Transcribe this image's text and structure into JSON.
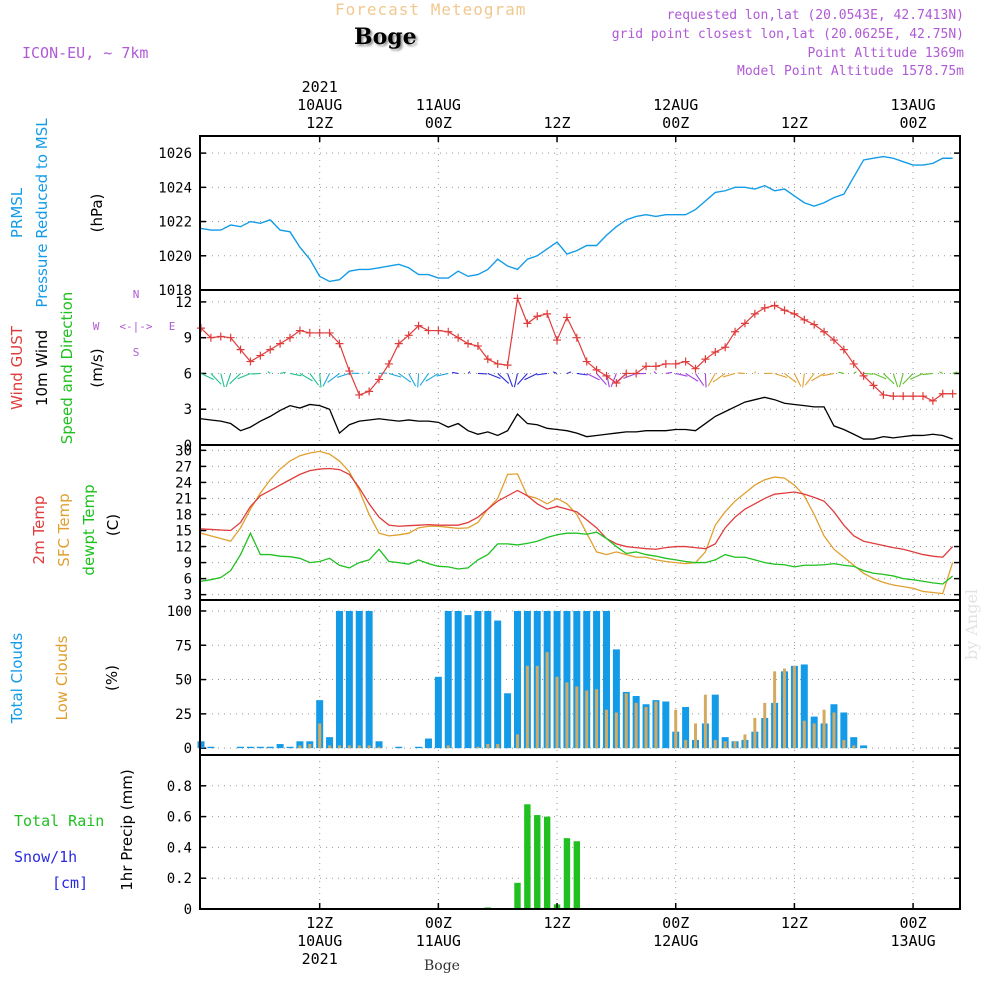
{
  "header": {
    "top_title": "Forecast Meteogram",
    "location": "Boge",
    "model": "ICON-EU, ~ 7km",
    "requested": "requested lon,lat (20.0543E, 42.7413N)",
    "grid_point": "grid point closest lon,lat (20.0625E, 42.75N)",
    "point_altitude": "Point Altitude 1369m",
    "model_altitude": "Model Point Altitude 1578.75m"
  },
  "footer": {
    "location": "Boge",
    "watermark": "by Angel"
  },
  "colors": {
    "blue": "#139be8",
    "red": "#e03c3c",
    "orange": "#e0a030",
    "green": "#20c020",
    "purple": "#b05ad6",
    "black": "#000000",
    "navy": "#2a2ae0"
  },
  "chart_data": [
    {
      "type": "line",
      "title": "PRMSL Pressure Reduced to MSL",
      "ylabels": [
        "PRMSL",
        "Pressure Reduced to MSL",
        "(hPa)"
      ],
      "ylim": [
        1018,
        1027
      ],
      "yticks": [
        1018,
        1020,
        1022,
        1024,
        1026
      ],
      "series": [
        {
          "name": "PRMSL",
          "color": "#139be8",
          "values": [
            1021.6,
            1021.5,
            1021.5,
            1021.8,
            1021.7,
            1022.0,
            1021.9,
            1022.1,
            1021.5,
            1021.4,
            1020.5,
            1019.8,
            1018.8,
            1018.5,
            1018.6,
            1019.1,
            1019.2,
            1019.2,
            1019.3,
            1019.4,
            1019.5,
            1019.3,
            1018.9,
            1018.9,
            1018.7,
            1018.7,
            1019.1,
            1018.8,
            1018.9,
            1019.2,
            1019.8,
            1019.4,
            1019.2,
            1019.8,
            1020.0,
            1020.4,
            1020.8,
            1020.1,
            1020.3,
            1020.6,
            1020.6,
            1021.2,
            1021.7,
            1022.1,
            1022.3,
            1022.4,
            1022.3,
            1022.4,
            1022.4,
            1022.4,
            1022.7,
            1023.2,
            1023.7,
            1023.8,
            1024.0,
            1024.0,
            1023.9,
            1024.1,
            1023.8,
            1023.9,
            1023.5,
            1023.1,
            1022.9,
            1023.1,
            1023.4,
            1023.6,
            1024.6,
            1025.6,
            1025.7,
            1025.8,
            1025.7,
            1025.5,
            1025.3,
            1025.3,
            1025.4,
            1025.7,
            1025.7
          ]
        }
      ]
    },
    {
      "type": "line",
      "title": "Wind GUST, 10m Wind Speed and Direction",
      "ylabels": [
        "Wind GUST",
        "10m Wind",
        "Speed and Direction",
        "(m/s)"
      ],
      "compass_label": "N W <-|-> E S",
      "ylim": [
        0,
        13
      ],
      "yticks": [
        0,
        3,
        6,
        9,
        12
      ],
      "series": [
        {
          "name": "Wind GUST",
          "color": "#e03c3c",
          "marker": "+",
          "values": [
            9.8,
            9.0,
            9.1,
            9.0,
            8.0,
            7.0,
            7.5,
            8.0,
            8.5,
            9.0,
            9.6,
            9.4,
            9.4,
            9.4,
            8.5,
            6.2,
            4.2,
            4.5,
            5.5,
            6.8,
            8.5,
            9.2,
            10.0,
            9.6,
            9.6,
            9.5,
            9.0,
            8.5,
            8.3,
            7.2,
            6.8,
            6.7,
            12.3,
            10.2,
            10.8,
            11.0,
            8.8,
            10.7,
            9.0,
            7.0,
            6.3,
            5.8,
            5.2,
            6.0,
            6.0,
            6.6,
            6.6,
            6.8,
            6.8,
            7.0,
            6.4,
            7.2,
            7.8,
            8.2,
            9.5,
            10.2,
            11.0,
            11.5,
            11.7,
            11.3,
            11.0,
            10.5,
            10.1,
            9.5,
            8.8,
            8.0,
            6.8,
            5.8,
            5.0,
            4.2,
            4.1,
            4.1,
            4.1,
            4.1,
            3.7,
            4.3,
            4.3
          ]
        },
        {
          "name": "10m Wind",
          "color": "#000000",
          "values": [
            2.2,
            2.1,
            2.0,
            1.8,
            1.2,
            1.5,
            2.0,
            2.4,
            2.9,
            3.3,
            3.1,
            3.4,
            3.3,
            3.0,
            1.0,
            1.7,
            2.0,
            2.1,
            2.2,
            2.1,
            2.0,
            2.1,
            2.0,
            2.0,
            1.9,
            1.5,
            1.8,
            1.2,
            0.9,
            1.1,
            0.8,
            1.2,
            2.6,
            1.8,
            1.7,
            1.4,
            1.3,
            1.2,
            1.0,
            0.7,
            0.8,
            0.9,
            1.0,
            1.1,
            1.1,
            1.2,
            1.2,
            1.2,
            1.3,
            1.3,
            1.2,
            1.8,
            2.4,
            2.8,
            3.2,
            3.6,
            3.8,
            4.0,
            3.8,
            3.5,
            3.4,
            3.3,
            3.2,
            3.2,
            1.6,
            1.3,
            0.9,
            0.5,
            0.5,
            0.7,
            0.6,
            0.7,
            0.8,
            0.8,
            0.9,
            0.8,
            0.5
          ]
        }
      ]
    },
    {
      "type": "line",
      "title": "2m Temp, SFC Temp, dewpt Temp",
      "ylabels": [
        "2m Temp",
        "SFC Temp",
        "dewpt Temp",
        "(C)"
      ],
      "ylim": [
        2,
        31
      ],
      "yticks": [
        3,
        6,
        9,
        12,
        15,
        18,
        21,
        24,
        27,
        30
      ],
      "series": [
        {
          "name": "2m Temp",
          "color": "#e03c3c",
          "values": [
            15.3,
            15.2,
            15.1,
            15.0,
            16.5,
            19.5,
            21.5,
            22.5,
            23.5,
            24.5,
            25.5,
            26.2,
            26.5,
            26.6,
            26.4,
            25.5,
            23.0,
            20.0,
            17.5,
            16.0,
            15.8,
            15.9,
            16.0,
            16.1,
            16.0,
            16.0,
            16.0,
            16.5,
            17.5,
            19.0,
            20.5,
            21.5,
            22.5,
            21.5,
            20.0,
            19.0,
            19.5,
            19.0,
            18.5,
            17.0,
            15.5,
            13.5,
            12.5,
            12.0,
            11.8,
            11.6,
            11.5,
            11.8,
            12.0,
            12.0,
            11.8,
            11.6,
            12.5,
            15.5,
            17.5,
            19.0,
            20.0,
            21.0,
            21.8,
            22.0,
            22.2,
            21.8,
            21.2,
            20.5,
            18.5,
            16.0,
            14.0,
            13.0,
            12.6,
            12.2,
            11.8,
            11.5,
            11.0,
            10.5,
            10.2,
            10.0,
            12.0
          ]
        },
        {
          "name": "SFC Temp",
          "color": "#e0a030",
          "values": [
            14.5,
            14.0,
            13.5,
            13.0,
            15.5,
            19.0,
            22.0,
            24.5,
            26.5,
            28.0,
            29.0,
            29.5,
            29.8,
            29.3,
            28.0,
            26.0,
            22.5,
            18.0,
            14.5,
            14.0,
            14.2,
            14.5,
            15.5,
            15.8,
            15.8,
            15.6,
            15.4,
            15.5,
            16.5,
            19.0,
            21.0,
            25.5,
            25.6,
            21.5,
            21.0,
            20.0,
            21.0,
            20.0,
            18.0,
            14.5,
            11.0,
            10.5,
            11.0,
            10.5,
            10.0,
            10.0,
            9.5,
            9.2,
            9.0,
            8.8,
            9.0,
            11.0,
            16.0,
            18.5,
            20.5,
            22.0,
            23.5,
            24.5,
            25.0,
            24.8,
            23.5,
            21.5,
            18.0,
            14.0,
            11.5,
            10.0,
            8.5,
            7.0,
            6.0,
            5.3,
            4.8,
            4.5,
            4.2,
            3.6,
            3.4,
            3.2,
            9.0
          ]
        },
        {
          "name": "dewpt Temp",
          "color": "#20c020",
          "values": [
            5.5,
            5.8,
            6.2,
            7.5,
            10.5,
            14.5,
            10.5,
            10.5,
            10.2,
            10.1,
            9.8,
            9.0,
            9.2,
            9.8,
            8.5,
            8.0,
            9.0,
            9.5,
            11.5,
            9.2,
            9.0,
            8.7,
            9.5,
            8.8,
            8.3,
            8.2,
            7.8,
            8.0,
            9.5,
            10.5,
            12.5,
            12.5,
            12.3,
            12.6,
            13.0,
            13.7,
            14.2,
            14.5,
            14.5,
            14.3,
            14.7,
            13.5,
            12.0,
            10.7,
            11.0,
            10.5,
            10.2,
            9.8,
            9.5,
            9.2,
            9.0,
            9.0,
            9.5,
            10.5,
            10.0,
            10.0,
            9.5,
            9.0,
            8.7,
            8.6,
            8.2,
            8.5,
            8.5,
            8.6,
            8.8,
            8.5,
            8.3,
            7.5,
            7.0,
            6.8,
            6.5,
            6.0,
            5.8,
            5.5,
            5.2,
            5.0,
            6.5
          ]
        }
      ]
    },
    {
      "type": "bar",
      "title": "Total Clouds, Low Clouds",
      "ylabels": [
        "Total Clouds",
        "Low Clouds",
        "(%)"
      ],
      "ylim": [
        -5,
        108
      ],
      "yticks": [
        0,
        25,
        50,
        75,
        100
      ],
      "series": [
        {
          "name": "Total Clouds",
          "color": "#139be8",
          "values": [
            5,
            1,
            0,
            0,
            1,
            1,
            1,
            1,
            3,
            1,
            5,
            5,
            35,
            8,
            100,
            100,
            100,
            100,
            5,
            0,
            1,
            0,
            1,
            7,
            52,
            100,
            100,
            97,
            100,
            100,
            93,
            40,
            100,
            100,
            100,
            100,
            100,
            100,
            100,
            100,
            100,
            100,
            72,
            41,
            38,
            32,
            35,
            34,
            12,
            30,
            6,
            18,
            39,
            8,
            5,
            6,
            12,
            22,
            33,
            56,
            60,
            61,
            23,
            18,
            32,
            26,
            8,
            2,
            0,
            0,
            0,
            0,
            0,
            0,
            0,
            0,
            0
          ]
        },
        {
          "name": "Low Clouds",
          "color": "#d4aa60",
          "values": [
            0,
            0,
            0,
            0,
            0,
            0,
            0,
            0,
            0,
            0,
            2,
            3,
            18,
            2,
            2,
            2,
            2,
            2,
            1,
            0,
            0,
            0,
            0,
            0,
            0,
            2,
            0,
            0,
            1,
            3,
            3,
            0,
            10,
            60,
            60,
            70,
            52,
            48,
            45,
            42,
            43,
            28,
            26,
            40,
            33,
            30,
            34,
            0,
            28,
            6,
            18,
            39,
            6,
            5,
            5,
            10,
            22,
            33,
            56,
            58,
            60,
            20,
            18,
            28,
            26,
            6,
            2,
            0,
            0,
            0,
            0,
            0,
            0,
            0,
            0,
            0,
            0
          ]
        }
      ]
    },
    {
      "type": "bar",
      "title": "1hr Precip (mm)",
      "ylabels": [
        "Total Rain",
        "Snow/1h",
        "[cm]",
        "1hr Precip (mm)"
      ],
      "ylim": [
        0,
        1.0
      ],
      "yticks": [
        0,
        0.2,
        0.4,
        0.6,
        0.8
      ],
      "series": [
        {
          "name": "Total Rain",
          "color": "#20c020",
          "values": [
            0,
            0,
            0,
            0,
            0,
            0,
            0,
            0,
            0,
            0,
            0,
            0,
            0,
            0,
            0,
            0,
            0,
            0,
            0,
            0,
            0,
            0,
            0,
            0,
            0,
            0,
            0,
            0,
            0,
            0.01,
            0,
            0,
            0.17,
            0.68,
            0.61,
            0.6,
            0.03,
            0.46,
            0.44,
            0,
            0,
            0,
            0,
            0,
            0,
            0,
            0,
            0,
            0,
            0,
            0,
            0,
            0,
            0,
            0,
            0,
            0,
            0,
            0,
            0,
            0,
            0,
            0,
            0,
            0,
            0,
            0,
            0,
            0,
            0,
            0,
            0,
            0,
            0,
            0,
            0,
            0
          ]
        },
        {
          "name": "Snow/1h",
          "color": "#2a2ae0",
          "values": []
        }
      ]
    }
  ],
  "x_axis": {
    "top_labels": [
      {
        "year": "2021",
        "date": "10AUG",
        "time": "12Z"
      },
      {
        "year": "",
        "date": "11AUG",
        "time": "00Z"
      },
      {
        "year": "",
        "date": "",
        "time": "12Z"
      },
      {
        "year": "",
        "date": "12AUG",
        "time": "00Z"
      },
      {
        "year": "",
        "date": "",
        "time": "12Z"
      },
      {
        "year": "",
        "date": "13AUG",
        "time": "00Z"
      }
    ],
    "bottom_labels": [
      {
        "time": "12Z",
        "date": "10AUG",
        "year": "2021"
      },
      {
        "time": "00Z",
        "date": "11AUG",
        "year": ""
      },
      {
        "time": "12Z",
        "date": "",
        "year": ""
      },
      {
        "time": "00Z",
        "date": "12AUG",
        "year": ""
      },
      {
        "time": "12Z",
        "date": "",
        "year": ""
      },
      {
        "time": "00Z",
        "date": "13AUG",
        "year": ""
      }
    ],
    "tick_hours": [
      12,
      24,
      36,
      48,
      60,
      72
    ]
  }
}
